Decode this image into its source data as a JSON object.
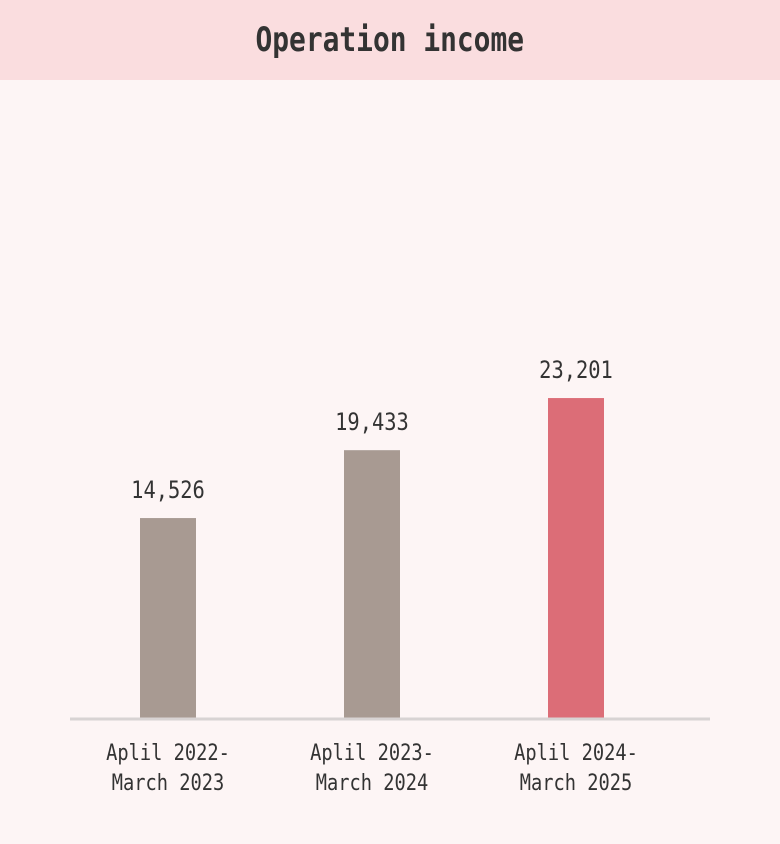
{
  "header": {
    "title": "Operation income"
  },
  "colors": {
    "default_bar": "#a89a92",
    "highlight_bar": "#dc6d77",
    "baseline": "#d8d3d3",
    "header_bg": "#fadddf",
    "background": "#fdf5f5"
  },
  "chart_data": {
    "type": "bar",
    "title": "Operation income",
    "xlabel": "",
    "ylabel": "",
    "categories": [
      [
        "Aplil 2022-",
        "March 2023"
      ],
      [
        "Aplil 2023-",
        "March 2024"
      ],
      [
        "Aplil 2024-",
        "March 2025"
      ]
    ],
    "values": [
      14526,
      19433,
      23201
    ],
    "value_labels": [
      "14,526",
      "19,433",
      "23,201"
    ],
    "highlight_index": 2,
    "ylim": [
      0,
      30000
    ],
    "grid": false,
    "legend": "none"
  }
}
